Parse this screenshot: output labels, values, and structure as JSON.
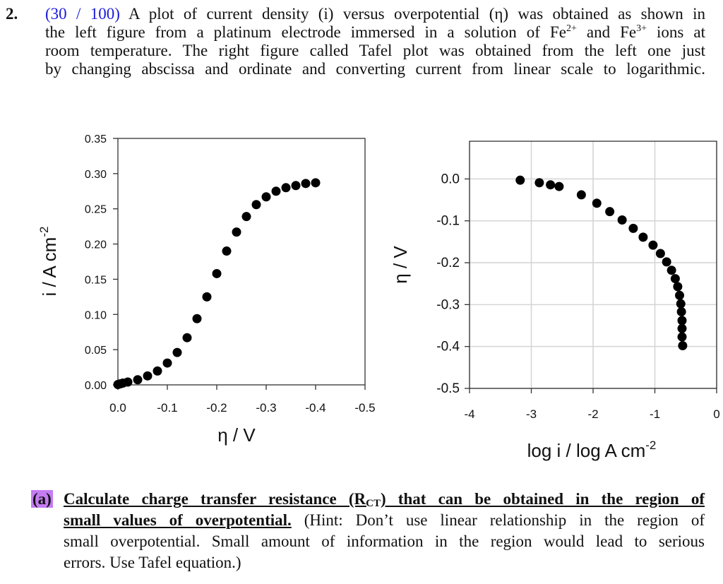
{
  "question": {
    "number": "2.",
    "points": "(30 / 100)",
    "line1": " A plot of current density (i) versus overpotential (η) was obtained as shown in",
    "line2a": "the left figure from a platinum electrode immersed in a solution of Fe",
    "sup1": "2+",
    "line2b": " and Fe",
    "sup2": "3+",
    "line2c": " ions at",
    "line3": "room temperature. The right figure called Tafel plot was obtained from the left one just",
    "line4": "by changing abscissa and ordinate and converting current from linear scale to logarithmic."
  },
  "part_a": {
    "label": "(a)",
    "bold1a": "Calculate charge transfer resistance (R",
    "bold1sub": "CT",
    "bold1b": ") that can be obtained in the region of",
    "bold2": "small values of overpotential.",
    "line2rest": " (Hint: Don’t use linear relationship in the region of",
    "line3": "small overpotential. Small amount of information in the region would lead to serious",
    "line4": "errors. Use Tafel equation.)",
    "highlight_color": "#c57cf2"
  },
  "chart_data": [
    {
      "type": "scatter",
      "xlabel": "η / V",
      "ylabel": "i / A cm",
      "ylabel_sup": "-2",
      "xlim": [
        0,
        -0.5
      ],
      "ylim": [
        0,
        0.35
      ],
      "xticks": [
        "0.0",
        "-0.1",
        "-0.2",
        "-0.3",
        "-0.4",
        "-0.5"
      ],
      "xtick_values": [
        0,
        -0.1,
        -0.2,
        -0.3,
        -0.4,
        -0.5
      ],
      "yticks": [
        "0.00",
        "0.05",
        "0.10",
        "0.15",
        "0.20",
        "0.25",
        "0.30",
        "0.35"
      ],
      "ytick_values": [
        0,
        0.05,
        0.1,
        0.15,
        0.2,
        0.25,
        0.3,
        0.35
      ],
      "grid": false,
      "x": [
        0,
        -0.005,
        -0.01,
        -0.02,
        -0.04,
        -0.06,
        -0.08,
        -0.1,
        -0.12,
        -0.14,
        -0.16,
        -0.18,
        -0.2,
        -0.22,
        -0.24,
        -0.26,
        -0.28,
        -0.3,
        -0.32,
        -0.34,
        -0.36,
        -0.38,
        -0.4
      ],
      "y": [
        0.0005,
        0.0015,
        0.0025,
        0.004,
        0.0073,
        0.0127,
        0.0197,
        0.031,
        0.046,
        0.067,
        0.094,
        0.125,
        0.158,
        0.19,
        0.217,
        0.239,
        0.256,
        0.267,
        0.275,
        0.28,
        0.283,
        0.286,
        0.287
      ]
    },
    {
      "type": "scatter",
      "xlabel": "log i / log A cm",
      "xlabel_sup": "-2",
      "ylabel": "η / V",
      "xlim": [
        -4,
        0
      ],
      "ylim": [
        -0.5,
        0.09
      ],
      "xticks": [
        "-4",
        "-3",
        "-2",
        "-1",
        "0"
      ],
      "xtick_values": [
        -4,
        -3,
        -2,
        -1,
        0
      ],
      "yticks": [
        "-0.5",
        "-0.4",
        "-0.3",
        "-0.2",
        "-0.1",
        "0.0"
      ],
      "ytick_values": [
        -0.5,
        -0.4,
        -0.3,
        -0.2,
        -0.1,
        0.0
      ],
      "grid": true,
      "x": [
        -3.18,
        -2.87,
        -2.69,
        -2.55,
        -2.19,
        -1.94,
        -1.73,
        -1.53,
        -1.35,
        -1.19,
        -1.03,
        -0.91,
        -0.81,
        -0.73,
        -0.67,
        -0.63,
        -0.6,
        -0.58,
        -0.57,
        -0.56,
        -0.56,
        -0.56,
        -0.55
      ],
      "y": [
        -0.003,
        -0.009,
        -0.014,
        -0.018,
        -0.038,
        -0.058,
        -0.078,
        -0.098,
        -0.118,
        -0.139,
        -0.158,
        -0.178,
        -0.198,
        -0.218,
        -0.238,
        -0.257,
        -0.278,
        -0.298,
        -0.317,
        -0.338,
        -0.357,
        -0.377,
        -0.398
      ]
    }
  ]
}
